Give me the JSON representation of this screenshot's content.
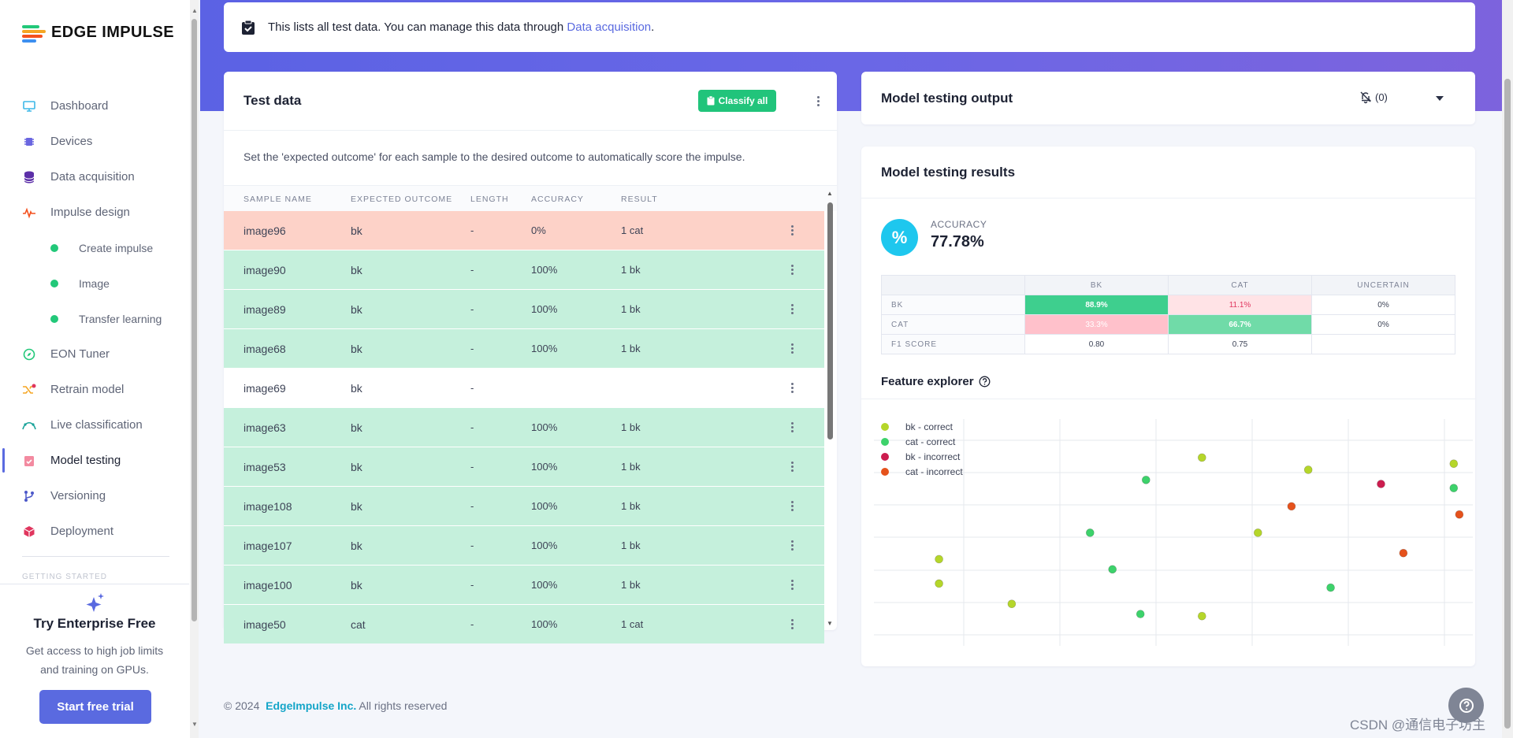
{
  "app": {
    "brand": "EDGE IMPULSE"
  },
  "nav": {
    "items": [
      {
        "label": "Dashboard",
        "icon": "monitor-icon"
      },
      {
        "label": "Devices",
        "icon": "chip-icon"
      },
      {
        "label": "Data acquisition",
        "icon": "database-icon"
      },
      {
        "label": "Impulse design",
        "icon": "pulse-icon"
      },
      {
        "label": "Create impulse",
        "icon": "dot-icon"
      },
      {
        "label": "Image",
        "icon": "dot-icon"
      },
      {
        "label": "Transfer learning",
        "icon": "dot-icon"
      },
      {
        "label": "EON Tuner",
        "icon": "compass-icon"
      },
      {
        "label": "Retrain model",
        "icon": "shuffle-icon"
      },
      {
        "label": "Live classification",
        "icon": "curve-icon"
      },
      {
        "label": "Model testing",
        "icon": "clipboard-check-icon"
      },
      {
        "label": "Versioning",
        "icon": "branch-icon"
      },
      {
        "label": "Deployment",
        "icon": "box-icon"
      }
    ],
    "section_cut": "GETTING STARTED"
  },
  "promo": {
    "title": "Try Enterprise Free",
    "text": "Get access to high job limits and training on GPUs.",
    "button": "Start free trial"
  },
  "info": {
    "text": "This lists all test data. You can manage this data through ",
    "link": "Data acquisition",
    "suffix": "."
  },
  "test_data": {
    "title": "Test data",
    "classify_button": "Classify all",
    "description": "Set the 'expected outcome' for each sample to the desired outcome to automatically score the impulse.",
    "columns": [
      "SAMPLE NAME",
      "EXPECTED OUTCOME",
      "LENGTH",
      "ACCURACY",
      "RESULT"
    ],
    "rows": [
      {
        "name": "image96",
        "expected": "bk",
        "length": "-",
        "accuracy": "0%",
        "result": "1 cat",
        "status": "bad"
      },
      {
        "name": "image90",
        "expected": "bk",
        "length": "-",
        "accuracy": "100%",
        "result": "1 bk",
        "status": "ok"
      },
      {
        "name": "image89",
        "expected": "bk",
        "length": "-",
        "accuracy": "100%",
        "result": "1 bk",
        "status": "ok"
      },
      {
        "name": "image68",
        "expected": "bk",
        "length": "-",
        "accuracy": "100%",
        "result": "1 bk",
        "status": "ok"
      },
      {
        "name": "image69",
        "expected": "bk",
        "length": "-",
        "accuracy": "",
        "result": "",
        "status": "none"
      },
      {
        "name": "image63",
        "expected": "bk",
        "length": "-",
        "accuracy": "100%",
        "result": "1 bk",
        "status": "ok"
      },
      {
        "name": "image53",
        "expected": "bk",
        "length": "-",
        "accuracy": "100%",
        "result": "1 bk",
        "status": "ok"
      },
      {
        "name": "image108",
        "expected": "bk",
        "length": "-",
        "accuracy": "100%",
        "result": "1 bk",
        "status": "ok"
      },
      {
        "name": "image107",
        "expected": "bk",
        "length": "-",
        "accuracy": "100%",
        "result": "1 bk",
        "status": "ok"
      },
      {
        "name": "image100",
        "expected": "bk",
        "length": "-",
        "accuracy": "100%",
        "result": "1 bk",
        "status": "ok"
      },
      {
        "name": "image50",
        "expected": "cat",
        "length": "-",
        "accuracy": "100%",
        "result": "1 cat",
        "status": "ok"
      }
    ]
  },
  "output": {
    "title": "Model testing output",
    "notifications": "(0)"
  },
  "results": {
    "title": "Model testing results",
    "accuracy_label": "ACCURACY",
    "accuracy_value": "77.78%",
    "confusion": {
      "columns": [
        "BK",
        "CAT",
        "UNCERTAIN"
      ],
      "rows": [
        {
          "label": "BK",
          "values": [
            "88.9%",
            "11.1%",
            "0%"
          ]
        },
        {
          "label": "CAT",
          "values": [
            "33.3%",
            "66.7%",
            "0%"
          ]
        },
        {
          "label": "F1 SCORE",
          "values": [
            "0.80",
            "0.75",
            ""
          ]
        }
      ]
    },
    "feature_explorer_title": "Feature explorer"
  },
  "chart_data": {
    "type": "scatter",
    "title": "Feature explorer",
    "xlim": [
      0,
      100
    ],
    "ylim": [
      0,
      100
    ],
    "grid": true,
    "legend_position": "top-left",
    "series": [
      {
        "name": "bk - correct",
        "color": "#b5d62a",
        "points": [
          [
            6,
            38
          ],
          [
            6,
            26
          ],
          [
            19,
            16
          ],
          [
            53,
            88
          ],
          [
            63,
            51
          ],
          [
            53,
            10
          ],
          [
            72,
            82
          ],
          [
            98,
            85
          ]
        ]
      },
      {
        "name": "cat - correct",
        "color": "#3dd26b",
        "points": [
          [
            43,
            77
          ],
          [
            33,
            51
          ],
          [
            37,
            33
          ],
          [
            42,
            11
          ],
          [
            76,
            24
          ],
          [
            98,
            73
          ]
        ]
      },
      {
        "name": "bk - incorrect",
        "color": "#cc1d4f",
        "points": [
          [
            85,
            75
          ]
        ]
      },
      {
        "name": "cat - incorrect",
        "color": "#e5521c",
        "points": [
          [
            69,
            64
          ],
          [
            89,
            41
          ],
          [
            99,
            60
          ]
        ]
      }
    ]
  },
  "footer": {
    "copy": "© 2024",
    "company": "EdgeImpulse Inc.",
    "rights": "All rights reserved"
  },
  "watermark": "CSDN @通信电子坊主"
}
